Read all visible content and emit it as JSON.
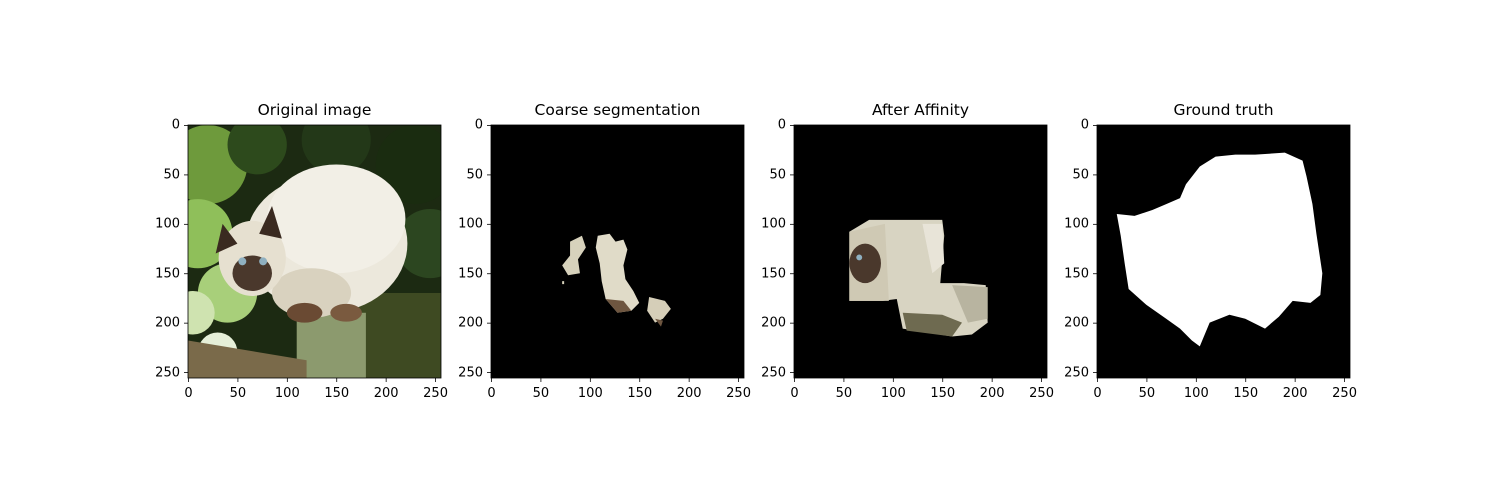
{
  "figure": {
    "panels": [
      {
        "title": "Original image",
        "kind": "photo",
        "subject": "cat-photo",
        "xticks": [
          0,
          50,
          100,
          150,
          200,
          250
        ],
        "yticks": [
          0,
          50,
          100,
          150,
          200,
          250
        ],
        "extent": [
          0,
          256
        ]
      },
      {
        "title": "Coarse segmentation",
        "kind": "masked-photo",
        "subject": "coarse-mask",
        "xticks": [
          0,
          50,
          100,
          150,
          200,
          250
        ],
        "yticks": [
          0,
          50,
          100,
          150,
          200,
          250
        ],
        "extent": [
          0,
          256
        ]
      },
      {
        "title": "After Affinity",
        "kind": "masked-photo",
        "subject": "affinity-mask",
        "xticks": [
          0,
          50,
          100,
          150,
          200,
          250
        ],
        "yticks": [
          0,
          50,
          100,
          150,
          200,
          250
        ],
        "extent": [
          0,
          256
        ]
      },
      {
        "title": "Ground truth",
        "kind": "binary-mask",
        "subject": "ground-truth-mask",
        "xticks": [
          0,
          50,
          100,
          150,
          200,
          250
        ],
        "yticks": [
          0,
          50,
          100,
          150,
          200,
          250
        ],
        "extent": [
          0,
          256
        ]
      }
    ],
    "colors": {
      "background": "#000000",
      "mask": "#ffffff",
      "fur": "#e8e4d6",
      "foliage": "#3f6a2a",
      "wood": "#6b5a3a"
    }
  }
}
